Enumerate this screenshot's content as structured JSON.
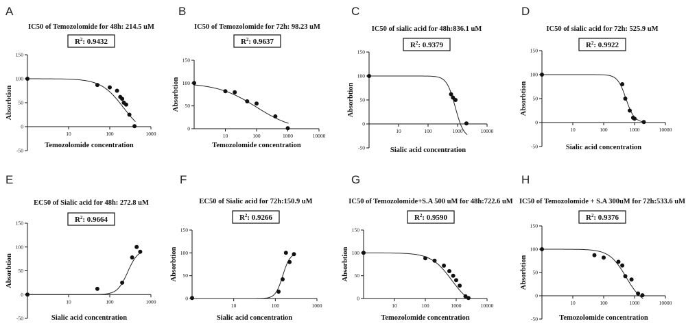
{
  "chart_data": [
    {
      "panel": "A",
      "type": "scatter",
      "title": "IC50 of Temozolomide for 48h: 214.5 uM",
      "r2_main": "0.9432",
      "xlabel": "Temozolomide concentration",
      "ylabel": "Absorbtion",
      "xscale": "log",
      "xticks": [
        10,
        100,
        1000
      ],
      "xlim": [
        1,
        1000
      ],
      "yticks": [
        -50,
        0,
        50,
        100,
        150
      ],
      "ylim": [
        -50,
        150
      ],
      "fit": {
        "ec50": 214.5,
        "hill": -1.6,
        "top": 100,
        "bottom": -20
      },
      "x": [
        1,
        50,
        100,
        150,
        180,
        200,
        220,
        250,
        300,
        400
      ],
      "y": [
        100,
        87,
        82,
        75,
        62,
        58,
        50,
        46,
        25,
        1
      ]
    },
    {
      "panel": "B",
      "type": "scatter",
      "title": "IC50 of Temozolomide for 72h: 98.23 uM",
      "r2_main": "0.9637",
      "xlabel": "Temozolomide concentration",
      "ylabel": "Absorbtion",
      "xscale": "log",
      "xticks": [
        10,
        100,
        1000,
        10000
      ],
      "xlim": [
        1,
        10000
      ],
      "yticks": [
        0,
        50,
        100,
        150
      ],
      "ylim": [
        0,
        150
      ],
      "fit": {
        "ec50": 98.23,
        "hill": -0.7,
        "top": 100,
        "bottom": -5
      },
      "x": [
        1,
        10,
        20,
        50,
        100,
        400,
        1000
      ],
      "y": [
        100,
        82,
        80,
        60,
        55,
        27,
        1
      ]
    },
    {
      "panel": "C",
      "type": "scatter",
      "title": "IC50 of sialic acid for 48h:836.1 uM",
      "r2_main": "0.9379",
      "xlabel": "Sialic acid concentration",
      "ylabel": "Absorbtion",
      "xscale": "log",
      "xticks": [
        10,
        100,
        1000,
        10000
      ],
      "xlim": [
        1,
        10000
      ],
      "yticks": [
        -50,
        0,
        50,
        100,
        150
      ],
      "ylim": [
        -50,
        150
      ],
      "fit": {
        "ec50": 836.1,
        "hill": -3.0,
        "top": 100,
        "bottom": -30
      },
      "x": [
        1,
        600,
        700,
        850,
        2000
      ],
      "y": [
        100,
        62,
        55,
        50,
        1
      ]
    },
    {
      "panel": "D",
      "type": "scatter",
      "title": "IC50 of sialic acid for 72h: 525.9 uM",
      "r2_main": "0.9922",
      "xlabel": "Sialic acid concentration",
      "ylabel": "Absorbtion",
      "xscale": "log",
      "xticks": [
        10,
        100,
        1000,
        10000
      ],
      "xlim": [
        1,
        10000
      ],
      "yticks": [
        -50,
        0,
        50,
        100,
        150
      ],
      "ylim": [
        -50,
        150
      ],
      "fit": {
        "ec50": 525.9,
        "hill": -3.2,
        "top": 100,
        "bottom": 0
      },
      "x": [
        1,
        400,
        500,
        700,
        900,
        1000,
        2000
      ],
      "y": [
        100,
        80,
        50,
        25,
        10,
        8,
        1
      ]
    },
    {
      "panel": "E",
      "type": "scatter",
      "title": "EC50 of Sialic acid for 48h: 272.8 uM",
      "r2_main": "0.9664",
      "xlabel": "Sialic acid concentration",
      "ylabel": "Absorbtion",
      "xscale": "log",
      "xticks": [
        10,
        100,
        1000
      ],
      "xlim": [
        1,
        1000
      ],
      "yticks": [
        -50,
        0,
        50,
        100,
        150
      ],
      "ylim": [
        -50,
        150
      ],
      "fit": {
        "ec50": 272.8,
        "hill": 3.5,
        "top": 95,
        "bottom": 0
      },
      "x": [
        1,
        50,
        200,
        350,
        450,
        550
      ],
      "y": [
        0,
        12,
        25,
        78,
        100,
        90
      ]
    },
    {
      "panel": "F",
      "type": "scatter",
      "title": "EC50 of Sialic acid for 72h:150.9 uM",
      "r2_main": "0.9266",
      "xlabel": "Sialic acid concentration",
      "ylabel": "Absorbtion",
      "xscale": "log",
      "xticks": [
        10,
        100,
        1000
      ],
      "xlim": [
        1,
        1000
      ],
      "yticks": [
        0,
        50,
        100,
        150
      ],
      "ylim": [
        0,
        150
      ],
      "fit": {
        "ec50": 150.9,
        "hill": 5.0,
        "top": 100,
        "bottom": 0
      },
      "x": [
        1,
        120,
        150,
        180,
        220,
        280
      ],
      "y": [
        1,
        15,
        42,
        100,
        80,
        97
      ]
    },
    {
      "panel": "G",
      "type": "scatter",
      "title": "IC50 of Temozolomide+S.A 500 uM for 48h:722.6 uM",
      "r2_main": "0.9590",
      "xlabel": "Temozolomide concentration",
      "ylabel": "Absorbtion",
      "xscale": "log",
      "xticks": [
        10,
        100,
        1000,
        10000
      ],
      "xlim": [
        1,
        10000
      ],
      "yticks": [
        0,
        50,
        100,
        150
      ],
      "ylim": [
        0,
        150
      ],
      "fit": {
        "ec50": 722.6,
        "hill": -1.3,
        "top": 100,
        "bottom": -20
      },
      "x": [
        1,
        100,
        200,
        400,
        600,
        800,
        1000,
        1300,
        2000,
        2500
      ],
      "y": [
        100,
        88,
        83,
        72,
        60,
        50,
        40,
        28,
        5,
        1
      ]
    },
    {
      "panel": "H",
      "type": "scatter",
      "title": "IC50 of Temozolomide + S.A 300uM for 72h:533.6 uM",
      "r2_main": "0.9376",
      "xlabel": "Temozolomide concentration",
      "ylabel": "Absorbtion",
      "xscale": "log",
      "xticks": [
        10,
        100,
        1000,
        10000
      ],
      "xlim": [
        1,
        10000
      ],
      "yticks": [
        -50,
        0,
        50,
        100,
        150
      ],
      "ylim": [
        -50,
        150
      ],
      "fit": {
        "ec50": 533.6,
        "hill": -1.6,
        "top": 100,
        "bottom": -20
      },
      "x": [
        1,
        50,
        100,
        300,
        400,
        500,
        800,
        1300,
        1800
      ],
      "y": [
        100,
        87,
        82,
        73,
        65,
        42,
        35,
        5,
        1
      ]
    }
  ]
}
